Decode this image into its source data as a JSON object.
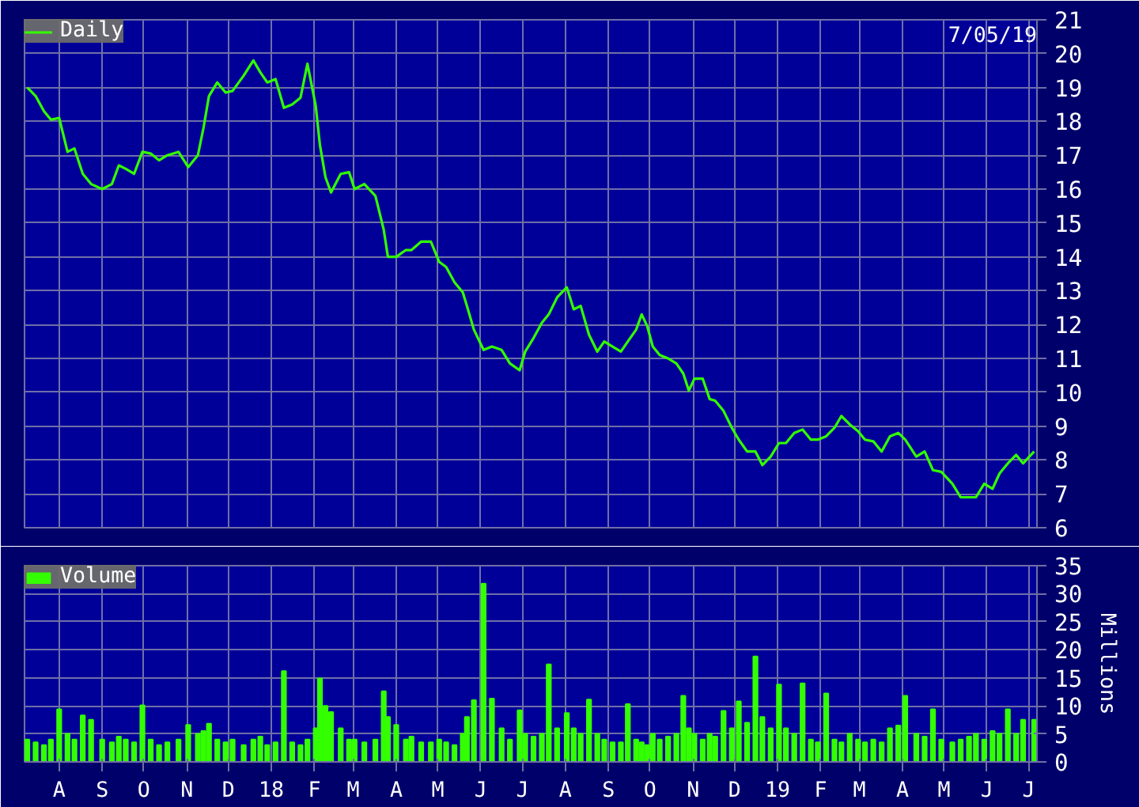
{
  "chart_data": [
    {
      "type": "line",
      "annotations": [
        "7/05/19"
      ],
      "legend": "top left",
      "grid": true,
      "marker": "none",
      "line_style": "solid",
      "tick_labels": "y",
      "x": [
        "2017-07-09",
        "2017-07-15",
        "2017-07-21",
        "2017-07-26",
        "2017-08-01",
        "2017-08-07",
        "2017-08-12",
        "2017-08-18",
        "2017-08-24",
        "2017-09-01",
        "2017-09-08",
        "2017-09-13",
        "2017-09-18",
        "2017-09-24",
        "2017-09-30",
        "2017-10-06",
        "2017-10-12",
        "2017-10-18",
        "2017-10-26",
        "2017-11-02",
        "2017-11-09",
        "2017-11-13",
        "2017-11-17",
        "2017-11-23",
        "2017-11-29",
        "2017-12-04",
        "2017-12-12",
        "2017-12-19",
        "2017-12-24",
        "2017-12-29",
        "2018-01-04",
        "2018-01-10",
        "2018-01-16",
        "2018-01-22",
        "2018-01-27",
        "2018-02-02",
        "2018-02-05",
        "2018-02-09",
        "2018-02-13",
        "2018-02-20",
        "2018-02-26",
        "2018-03-02",
        "2018-03-09",
        "2018-03-17",
        "2018-03-23",
        "2018-03-26",
        "2018-04-01",
        "2018-04-08",
        "2018-04-12",
        "2018-04-19",
        "2018-04-26",
        "2018-05-02",
        "2018-05-07",
        "2018-05-13",
        "2018-05-19",
        "2018-05-22",
        "2018-05-27",
        "2018-06-03",
        "2018-06-09",
        "2018-06-16",
        "2018-06-22",
        "2018-06-29",
        "2018-07-03",
        "2018-07-09",
        "2018-07-15",
        "2018-07-20",
        "2018-07-26",
        "2018-08-02",
        "2018-08-07",
        "2018-08-12",
        "2018-08-18",
        "2018-08-24",
        "2018-08-29",
        "2018-09-04",
        "2018-09-10",
        "2018-09-15",
        "2018-09-21",
        "2018-09-25",
        "2018-09-29",
        "2018-10-03",
        "2018-10-08",
        "2018-10-14",
        "2018-10-20",
        "2018-10-25",
        "2018-10-29",
        "2018-11-02",
        "2018-11-08",
        "2018-11-13",
        "2018-11-17",
        "2018-11-23",
        "2018-11-29",
        "2018-12-04",
        "2018-12-10",
        "2018-12-16",
        "2018-12-21",
        "2018-12-27",
        "2019-01-02",
        "2019-01-07",
        "2019-01-13",
        "2019-01-19",
        "2019-01-25",
        "2019-01-30",
        "2019-02-05",
        "2019-02-11",
        "2019-02-16",
        "2019-02-22",
        "2019-02-28",
        "2019-03-05",
        "2019-03-11",
        "2019-03-17",
        "2019-03-23",
        "2019-03-29",
        "2019-04-03",
        "2019-04-11",
        "2019-04-17",
        "2019-04-23",
        "2019-04-29",
        "2019-05-07",
        "2019-05-13",
        "2019-05-19",
        "2019-05-24",
        "2019-05-30",
        "2019-06-05",
        "2019-06-10",
        "2019-06-16",
        "2019-06-22",
        "2019-06-27",
        "2019-07-05"
      ],
      "series": [
        {
          "name": "Daily",
          "color": "#33ff00",
          "values": [
            19.0,
            18.75,
            18.3,
            18.05,
            18.1,
            17.1,
            17.2,
            16.45,
            16.15,
            16.0,
            16.15,
            16.7,
            16.6,
            16.45,
            17.1,
            17.05,
            16.85,
            17.0,
            17.1,
            16.65,
            17.0,
            17.8,
            18.75,
            19.15,
            18.85,
            18.9,
            19.35,
            19.8,
            19.45,
            19.15,
            19.25,
            18.4,
            18.5,
            18.7,
            19.7,
            18.45,
            17.3,
            16.35,
            15.9,
            16.45,
            16.5,
            16.0,
            16.15,
            15.8,
            14.8,
            14.0,
            14.0,
            14.2,
            14.2,
            14.45,
            14.45,
            13.85,
            13.7,
            13.25,
            12.95,
            12.55,
            11.85,
            11.25,
            11.35,
            11.25,
            10.85,
            10.65,
            11.2,
            11.6,
            12.05,
            12.3,
            12.8,
            13.1,
            12.45,
            12.55,
            11.7,
            11.2,
            11.5,
            11.35,
            11.2,
            11.5,
            11.85,
            12.3,
            11.95,
            11.35,
            11.1,
            11.0,
            10.85,
            10.55,
            10.05,
            10.4,
            10.4,
            9.8,
            9.75,
            9.45,
            8.95,
            8.6,
            8.25,
            8.25,
            7.85,
            8.1,
            8.5,
            8.5,
            8.8,
            8.9,
            8.6,
            8.6,
            8.7,
            8.95,
            9.3,
            9.05,
            8.85,
            8.6,
            8.55,
            8.25,
            8.7,
            8.8,
            8.6,
            8.1,
            8.25,
            7.7,
            7.65,
            7.3,
            6.9,
            6.9,
            6.9,
            7.3,
            7.15,
            7.6,
            7.9,
            8.15,
            7.9,
            8.25
          ]
        }
      ],
      "xlim": [
        "2017-07-07",
        "2019-07-07"
      ],
      "xticks": [
        {
          "value": "2017-08-01",
          "label": null
        },
        {
          "value": "2017-09-01",
          "label": null
        },
        {
          "value": "2017-10-01",
          "label": null
        },
        {
          "value": "2017-11-01",
          "label": null
        },
        {
          "value": "2017-12-01",
          "label": null
        },
        {
          "value": "2018-01-01",
          "label": null
        },
        {
          "value": "2018-02-01",
          "label": null
        },
        {
          "value": "2018-03-01",
          "label": null
        },
        {
          "value": "2018-04-01",
          "label": null
        },
        {
          "value": "2018-05-01",
          "label": null
        },
        {
          "value": "2018-06-01",
          "label": null
        },
        {
          "value": "2018-07-01",
          "label": null
        },
        {
          "value": "2018-08-01",
          "label": null
        },
        {
          "value": "2018-09-01",
          "label": null
        },
        {
          "value": "2018-10-01",
          "label": null
        },
        {
          "value": "2018-11-01",
          "label": null
        },
        {
          "value": "2018-12-01",
          "label": null
        },
        {
          "value": "2019-01-01",
          "label": null
        },
        {
          "value": "2019-02-01",
          "label": null
        },
        {
          "value": "2019-03-01",
          "label": null
        },
        {
          "value": "2019-04-01",
          "label": null
        },
        {
          "value": "2019-05-01",
          "label": null
        },
        {
          "value": "2019-06-01",
          "label": null
        },
        {
          "value": "2019-07-01",
          "label": null
        }
      ],
      "ylim": [
        6,
        21
      ],
      "yticks": [
        6,
        7,
        8,
        9,
        10,
        11,
        12,
        13,
        14,
        15,
        16,
        17,
        18,
        19,
        20,
        21
      ]
    },
    {
      "type": "bar",
      "ylabel": "Millions",
      "legend": "top left",
      "grid": true,
      "x": [
        "2017-07-09",
        "2017-07-15",
        "2017-07-21",
        "2017-07-26",
        "2017-08-01",
        "2017-08-07",
        "2017-08-12",
        "2017-08-18",
        "2017-08-24",
        "2017-09-01",
        "2017-09-08",
        "2017-09-13",
        "2017-09-18",
        "2017-09-24",
        "2017-09-30",
        "2017-10-06",
        "2017-10-12",
        "2017-10-18",
        "2017-10-26",
        "2017-11-02",
        "2017-11-09",
        "2017-11-13",
        "2017-11-17",
        "2017-11-23",
        "2017-11-29",
        "2017-12-04",
        "2017-12-12",
        "2017-12-19",
        "2017-12-24",
        "2017-12-29",
        "2018-01-04",
        "2018-01-10",
        "2018-01-16",
        "2018-01-22",
        "2018-01-27",
        "2018-02-02",
        "2018-02-05",
        "2018-02-09",
        "2018-02-13",
        "2018-02-20",
        "2018-02-26",
        "2018-03-02",
        "2018-03-09",
        "2018-03-17",
        "2018-03-23",
        "2018-03-26",
        "2018-04-01",
        "2018-04-08",
        "2018-04-12",
        "2018-04-19",
        "2018-04-26",
        "2018-05-02",
        "2018-05-07",
        "2018-05-13",
        "2018-05-19",
        "2018-05-22",
        "2018-05-27",
        "2018-06-03",
        "2018-06-09",
        "2018-06-16",
        "2018-06-22",
        "2018-06-29",
        "2018-07-03",
        "2018-07-09",
        "2018-07-15",
        "2018-07-20",
        "2018-07-26",
        "2018-08-02",
        "2018-08-07",
        "2018-08-12",
        "2018-08-18",
        "2018-08-24",
        "2018-08-29",
        "2018-09-04",
        "2018-09-10",
        "2018-09-15",
        "2018-09-21",
        "2018-09-25",
        "2018-09-29",
        "2018-10-03",
        "2018-10-08",
        "2018-10-14",
        "2018-10-20",
        "2018-10-25",
        "2018-10-29",
        "2018-11-02",
        "2018-11-08",
        "2018-11-13",
        "2018-11-17",
        "2018-11-23",
        "2018-11-29",
        "2018-12-04",
        "2018-12-10",
        "2018-12-16",
        "2018-12-21",
        "2018-12-27",
        "2019-01-02",
        "2019-01-07",
        "2019-01-13",
        "2019-01-19",
        "2019-01-25",
        "2019-01-30",
        "2019-02-05",
        "2019-02-11",
        "2019-02-16",
        "2019-02-22",
        "2019-02-28",
        "2019-03-05",
        "2019-03-11",
        "2019-03-17",
        "2019-03-23",
        "2019-03-29",
        "2019-04-03",
        "2019-04-11",
        "2019-04-17",
        "2019-04-23",
        "2019-04-29",
        "2019-05-07",
        "2019-05-13",
        "2019-05-19",
        "2019-05-24",
        "2019-05-30",
        "2019-06-05",
        "2019-06-10",
        "2019-06-16",
        "2019-06-22",
        "2019-06-27",
        "2019-07-05"
      ],
      "series": [
        {
          "name": "Volume",
          "color": "#33ff00",
          "values": [
            4,
            3.5,
            3,
            4,
            9.4,
            5,
            4,
            8.3,
            7.5,
            4,
            3.5,
            4.5,
            4,
            3.5,
            10.1,
            4,
            3,
            3.5,
            4,
            6.6,
            5,
            5.5,
            6.8,
            4,
            3.5,
            4,
            3,
            4,
            4.5,
            3,
            3.5,
            16.2,
            3.5,
            3,
            4,
            6,
            14.9,
            10,
            8.9,
            6,
            4,
            4,
            3.5,
            4,
            12.6,
            8,
            6.6,
            4,
            4.5,
            3.5,
            3.5,
            4,
            3.5,
            3,
            5,
            8,
            11,
            31.8,
            11.3,
            6,
            4,
            9.2,
            5,
            4.5,
            5,
            17.4,
            6,
            8.7,
            6,
            5,
            11.1,
            5,
            4,
            3.5,
            3.5,
            10.3,
            4,
            3.5,
            3,
            5,
            4,
            4.5,
            5,
            11.8,
            6,
            5,
            4,
            5,
            4.5,
            9.1,
            6,
            10.8,
            7,
            18.8,
            8,
            6,
            13.8,
            6,
            5,
            14,
            4,
            3.5,
            12.2,
            4,
            3.5,
            5,
            4,
            3.5,
            4,
            3.5,
            6,
            6.5,
            11.8,
            5,
            4.5,
            9.4,
            4,
            3.5,
            4,
            4.5,
            5,
            4,
            5.5,
            5,
            9.4,
            5,
            7.5,
            7.5
          ]
        }
      ],
      "xlim": [
        "2017-07-07",
        "2019-07-07"
      ],
      "xticks": [
        {
          "value": "2017-08-01",
          "label": "A"
        },
        {
          "value": "2017-09-01",
          "label": "S"
        },
        {
          "value": "2017-10-01",
          "label": "O"
        },
        {
          "value": "2017-11-01",
          "label": "N"
        },
        {
          "value": "2017-12-01",
          "label": "D"
        },
        {
          "value": "2018-01-01",
          "label": "18"
        },
        {
          "value": "2018-02-01",
          "label": "F"
        },
        {
          "value": "2018-03-01",
          "label": "M"
        },
        {
          "value": "2018-04-01",
          "label": "A"
        },
        {
          "value": "2018-05-01",
          "label": "M"
        },
        {
          "value": "2018-06-01",
          "label": "J"
        },
        {
          "value": "2018-07-01",
          "label": "J"
        },
        {
          "value": "2018-08-01",
          "label": "A"
        },
        {
          "value": "2018-09-01",
          "label": "S"
        },
        {
          "value": "2018-10-01",
          "label": "O"
        },
        {
          "value": "2018-11-01",
          "label": "N"
        },
        {
          "value": "2018-12-01",
          "label": "D"
        },
        {
          "value": "2019-01-01",
          "label": "19"
        },
        {
          "value": "2019-02-01",
          "label": "F"
        },
        {
          "value": "2019-03-01",
          "label": "M"
        },
        {
          "value": "2019-04-01",
          "label": "A"
        },
        {
          "value": "2019-05-01",
          "label": "M"
        },
        {
          "value": "2019-06-01",
          "label": "J"
        },
        {
          "value": "2019-07-01",
          "label": "J"
        }
      ],
      "ylim": [
        0,
        35
      ],
      "yticks": [
        0,
        5,
        10,
        15,
        20,
        25,
        30,
        35
      ]
    }
  ]
}
